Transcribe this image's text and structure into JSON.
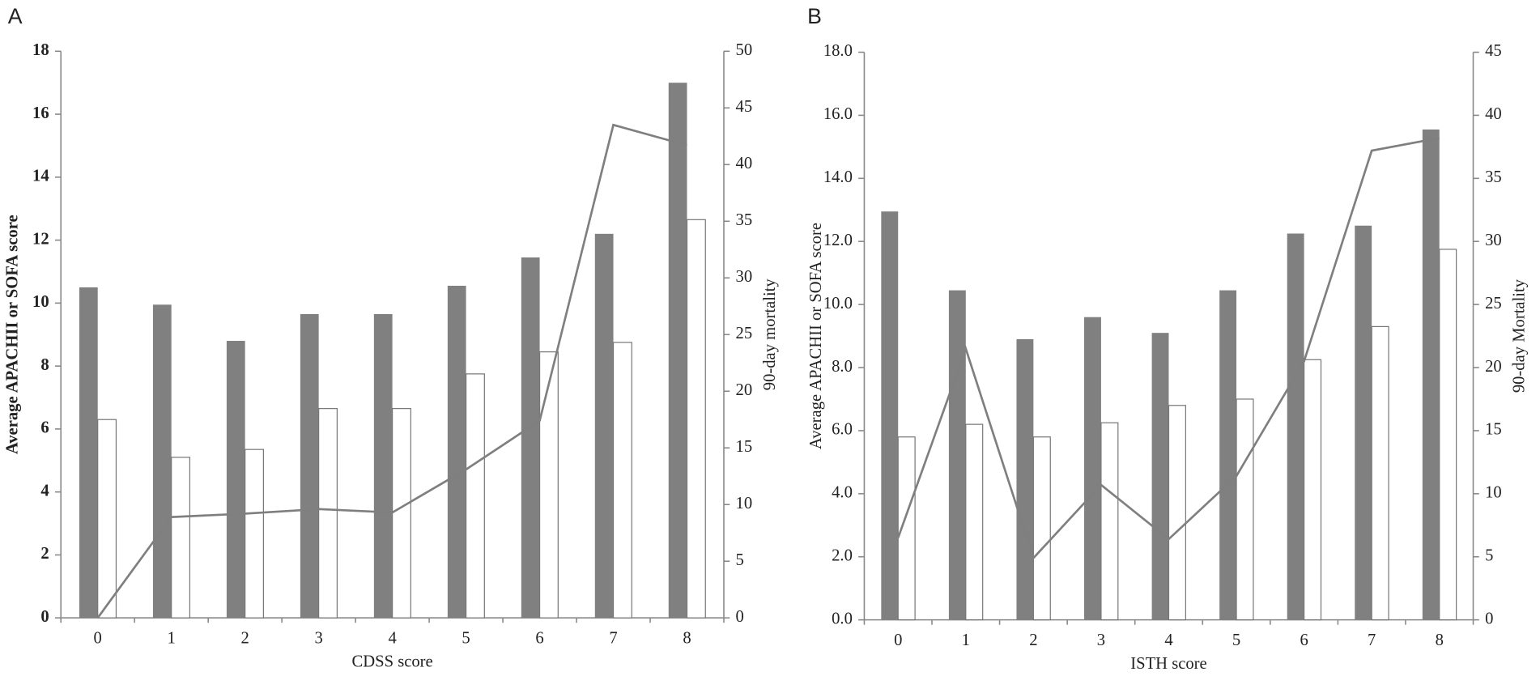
{
  "chart_data": [
    {
      "type": "bar",
      "panel_label": "A",
      "x_label": "CDSS score",
      "y_label": "Average APACHII or SOFA score",
      "y2_label": "90-day mortality",
      "categories": [
        "0",
        "1",
        "2",
        "3",
        "4",
        "5",
        "6",
        "7",
        "8"
      ],
      "ylim": [
        0,
        18
      ],
      "yticks": [
        0,
        2,
        4,
        6,
        8,
        10,
        12,
        14,
        16,
        18
      ],
      "y2lim": [
        0,
        50
      ],
      "y2ticks": [
        0,
        5,
        10,
        15,
        20,
        25,
        30,
        35,
        40,
        45,
        50
      ],
      "ytick_bold": true,
      "series": [
        {
          "color": "#808080",
          "values": [
            10.5,
            9.95,
            8.8,
            9.65,
            9.65,
            10.55,
            11.45,
            12.2,
            17.0
          ]
        },
        {
          "color": "#ffffff",
          "values": [
            6.3,
            5.1,
            5.35,
            6.65,
            6.65,
            7.75,
            8.45,
            8.75,
            12.65
          ]
        },
        {
          "type": "line",
          "axis": "y2",
          "color": "#7f7f7f",
          "values": [
            0,
            8.9,
            9.2,
            9.6,
            9.3,
            13.1,
            17.4,
            43.5,
            41.7
          ]
        }
      ]
    },
    {
      "type": "bar",
      "panel_label": "B",
      "x_label": "ISTH score",
      "y_label": "Average APACHII or SOFA score",
      "y2_label": "90-day Mortality",
      "categories": [
        "0",
        "1",
        "2",
        "3",
        "4",
        "5",
        "6",
        "7",
        "8"
      ],
      "ylim": [
        0,
        18
      ],
      "yticks": [
        {
          "value": 0,
          "label": "0.0"
        },
        {
          "value": 2,
          "label": "2.0"
        },
        {
          "value": 4,
          "label": "4.0"
        },
        {
          "value": 6,
          "label": "6.0"
        },
        {
          "value": 8,
          "label": "8.0"
        },
        {
          "value": 10,
          "label": "10.0"
        },
        {
          "value": 12,
          "label": "12.0"
        },
        {
          "value": 14,
          "label": "14.0"
        },
        {
          "value": 16,
          "label": "16.0"
        },
        {
          "value": 18,
          "label": "18.0"
        }
      ],
      "y2lim": [
        0,
        45
      ],
      "y2ticks": [
        0,
        5,
        10,
        15,
        20,
        25,
        30,
        35,
        40,
        45
      ],
      "ytick_bold": false,
      "series": [
        {
          "color": "#808080",
          "values": [
            12.95,
            10.45,
            8.9,
            9.6,
            9.1,
            10.45,
            12.25,
            12.5,
            15.55
          ]
        },
        {
          "color": "#ffffff",
          "values": [
            5.8,
            6.2,
            5.8,
            6.25,
            6.8,
            7.0,
            8.25,
            9.3,
            11.75
          ]
        },
        {
          "type": "line",
          "axis": "y2",
          "color": "#7f7f7f",
          "values": [
            6.5,
            21.5,
            4.9,
            10.7,
            6.4,
            11.4,
            20.5,
            37.2,
            38.2
          ]
        }
      ]
    }
  ]
}
